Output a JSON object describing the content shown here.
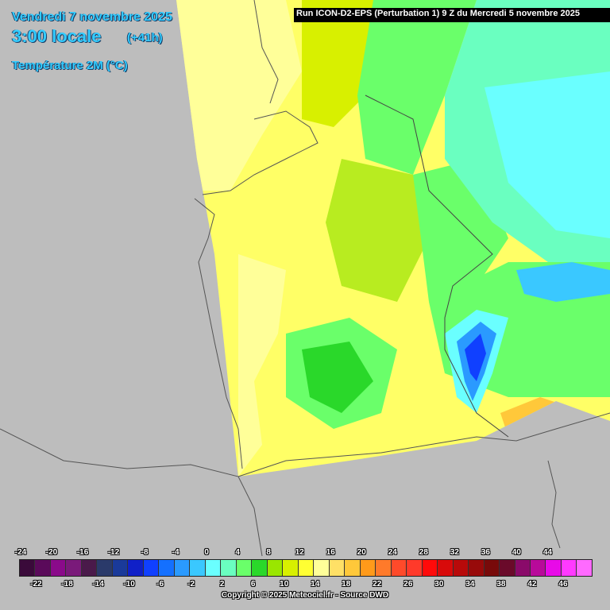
{
  "header": {
    "date": "Vendredi 7 novembre 2025",
    "time": "3:00 locale",
    "lead": "(+41h)",
    "parameter": "Température 2M (°C)"
  },
  "run_info": "Run ICON-D2-EPS (Perturbation 1) 9 Z du Mercredi 5 novembre 2025",
  "legend": {
    "top_labels": [
      "-24",
      "-20",
      "-16",
      "-12",
      "-8",
      "-4",
      "0",
      "4",
      "8",
      "12",
      "16",
      "20",
      "24",
      "28",
      "32",
      "36",
      "40",
      "44"
    ],
    "bottom_labels": [
      "-22",
      "-18",
      "-14",
      "-10",
      "-6",
      "-2",
      "2",
      "6",
      "10",
      "14",
      "18",
      "22",
      "26",
      "30",
      "34",
      "38",
      "42",
      "46"
    ],
    "colors": [
      "#3a0a3a",
      "#5a0a5a",
      "#8a0a8a",
      "#7a1a7a",
      "#4a1a4a",
      "#2a3a6a",
      "#1a3a9a",
      "#1020c8",
      "#1040ff",
      "#1470ff",
      "#2a9aff",
      "#3ac8ff",
      "#6affff",
      "#6affc0",
      "#6aff6a",
      "#2ad82a",
      "#9ae600",
      "#d8f000",
      "#ffff33",
      "#ffff99",
      "#ffe066",
      "#ffc83a",
      "#ff9a1a",
      "#ff7a2a",
      "#ff4a2a",
      "#ff3a2a",
      "#ff0a0a",
      "#d80a0a",
      "#b80a0a",
      "#980a0a",
      "#780a0a",
      "#6a0a2a",
      "#8a0a6a",
      "#b80a9a",
      "#e80ae8",
      "#ff3aff",
      "#ff6aff"
    ]
  },
  "copyright": "Copyright © 2025 Meteociel.fr - Source DWD"
}
